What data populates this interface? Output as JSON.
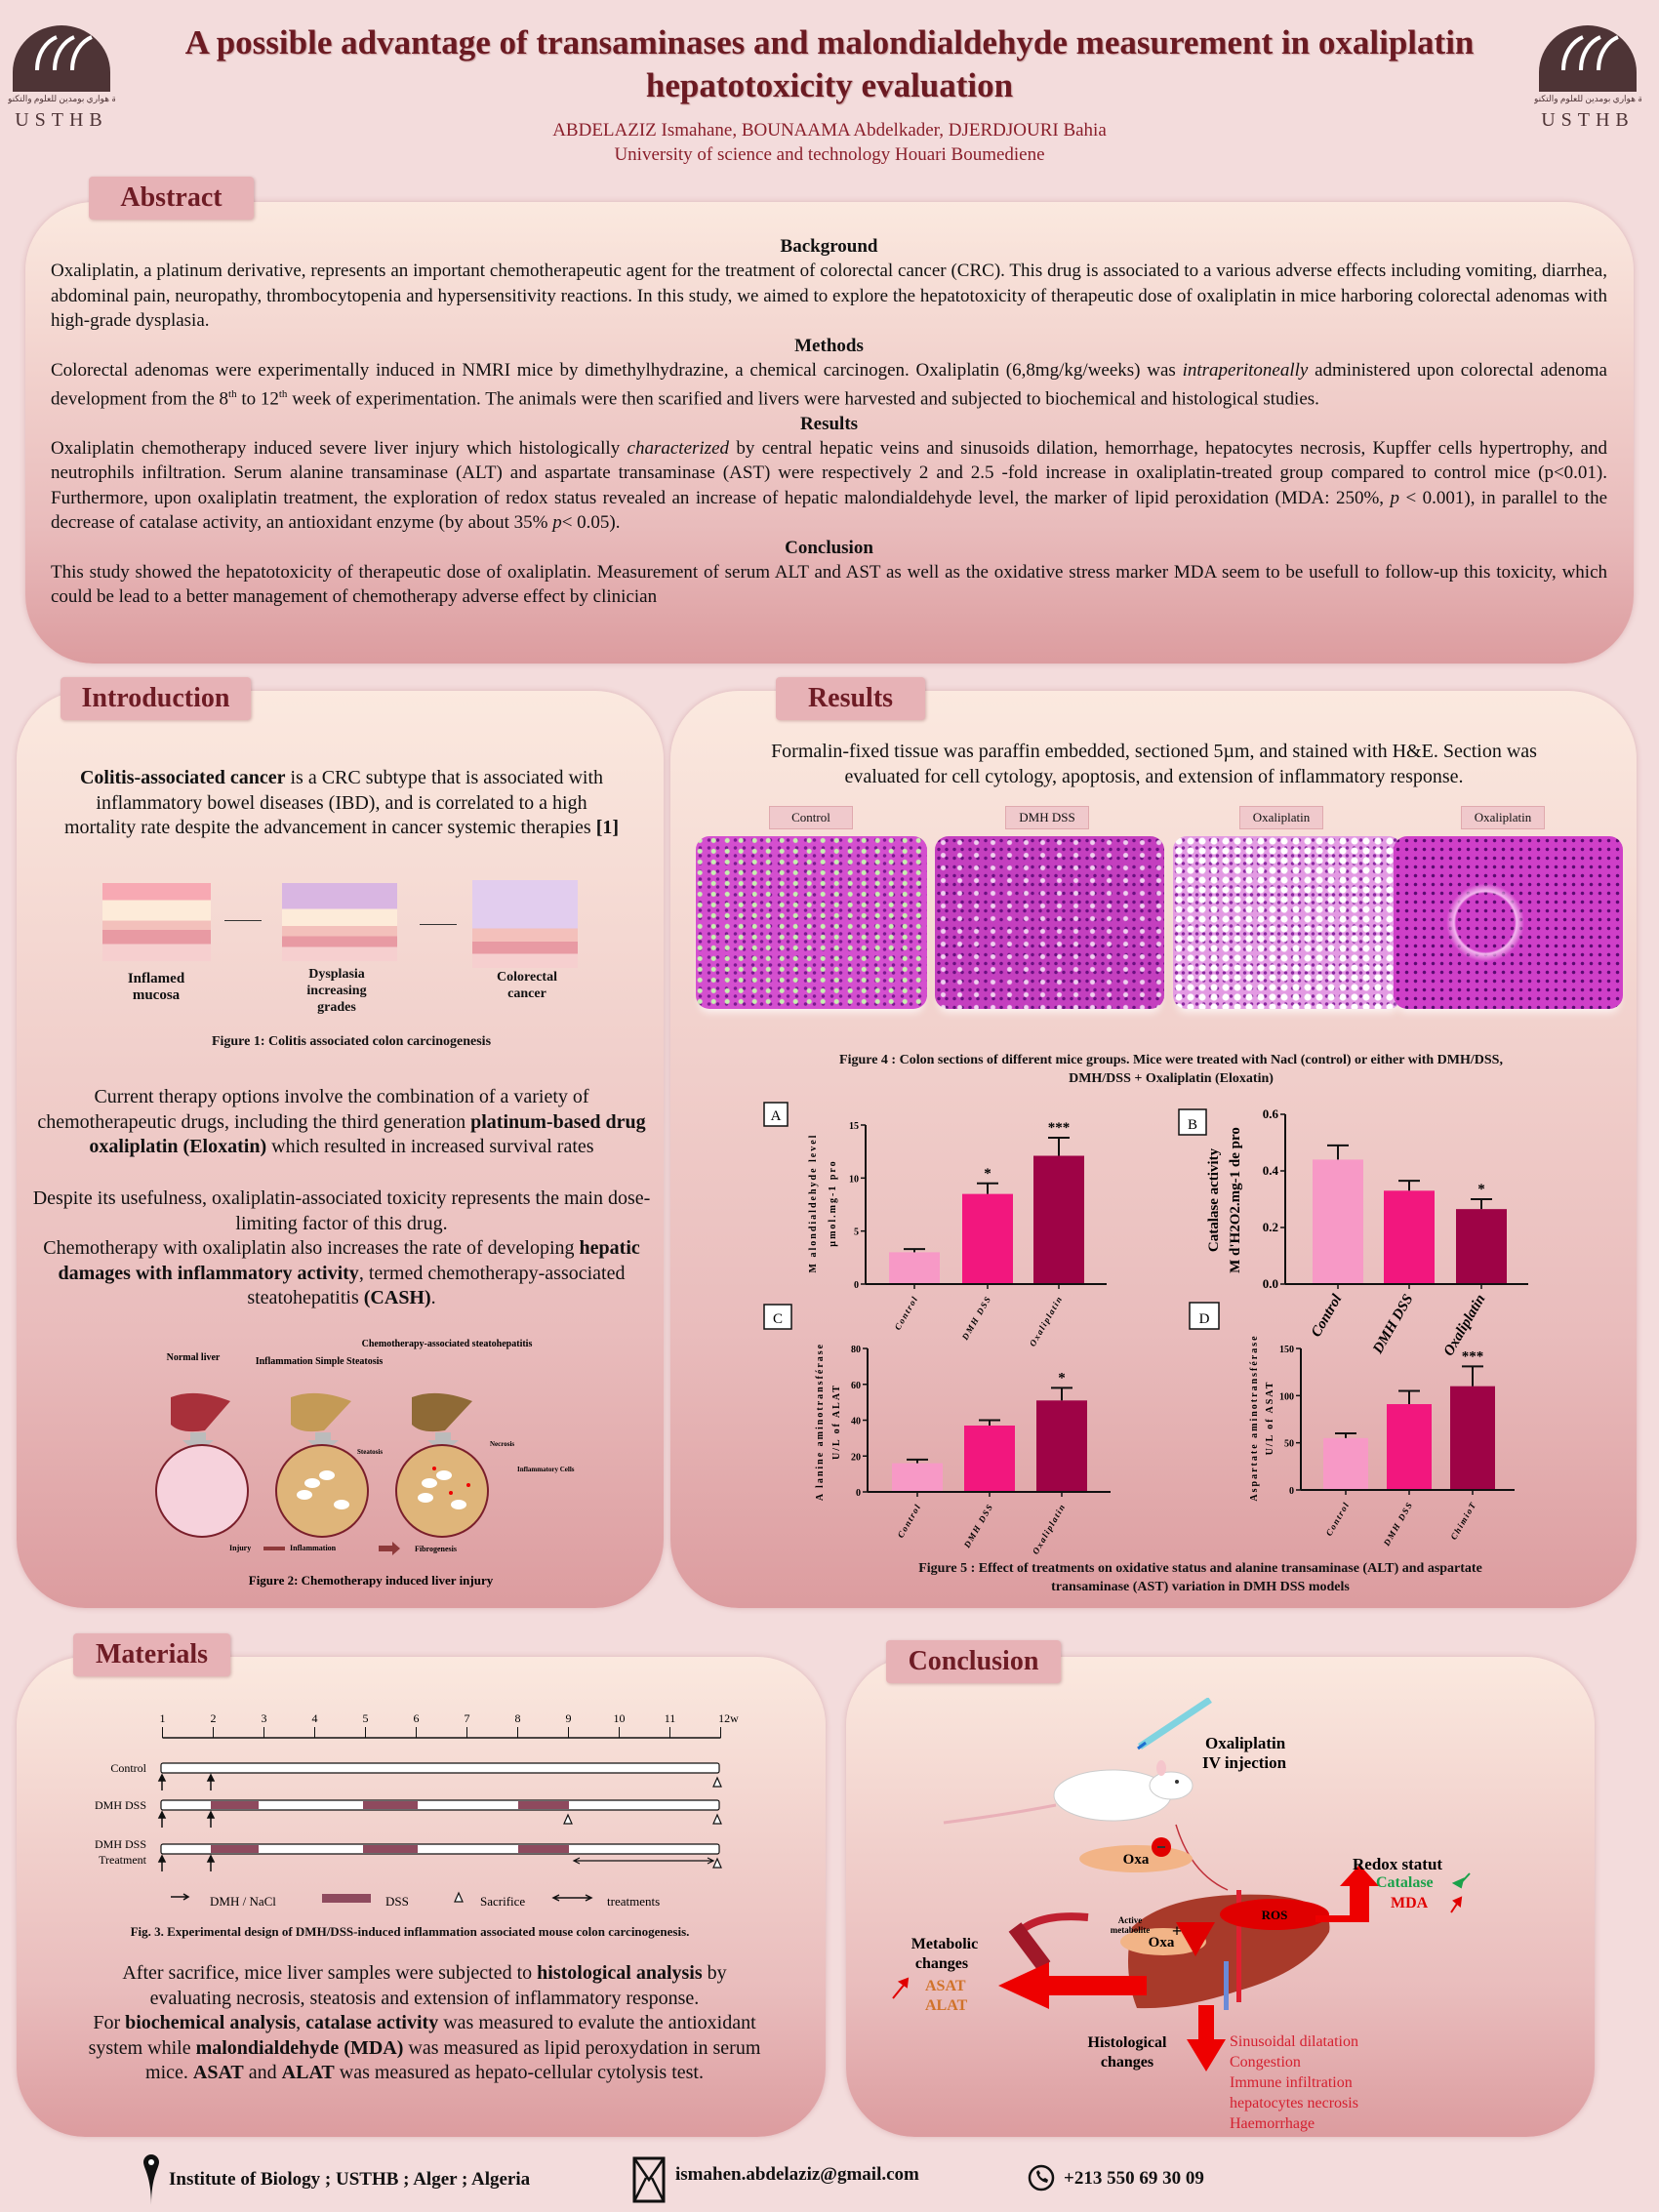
{
  "header": {
    "title_line1": "A possible advantage of transaminases and malondialdehyde measurement in oxaliplatin",
    "title_line2": "hepatotoxicity evaluation",
    "authors": "ABDELAZIZ Ismahane, BOUNAAMA Abdelkader, DJERDJOURI Bahia",
    "affiliation": "University of science and technology Houari Boumediene",
    "logo_text": "USTHB",
    "logo_arabic": "جامعة هواري بومدين للعلوم والتكنولوجيا"
  },
  "abstract": {
    "label": "Abstract",
    "background_h": "Background",
    "background": [
      {
        "t": "Oxaliplatin, a platinum derivative, represents an important chemotherapeutic agent for the treatment of colorectal cancer (CRC). This drug is associated to a various adverse effects including vomiting, diarrhea, abdominal pain, neuropathy, thrombocytopenia and hypersensitivity reactions. In this study, we aimed to explore the hepatotoxicity of therapeutic dose of oxaliplatin in mice harboring colorectal adenomas with high-grade dysplasia."
      }
    ],
    "methods_h": "Methods",
    "methods": [
      {
        "t": "Colorectal adenomas were experimentally induced in NMRI mice by dimethylhydrazine, a chemical carcinogen.  Oxaliplatin (6,8mg/kg/weeks) was "
      },
      {
        "t": "intraperitoneally",
        "i": true
      },
      {
        "t": " administered upon colorectal adenoma development from the 8"
      },
      {
        "t": "th",
        "sup": true
      },
      {
        "t": " to 12"
      },
      {
        "t": "th",
        "sup": true
      },
      {
        "t": " week of experimentation. The animals were then scarified and livers were harvested and subjected to biochemical and histological studies."
      }
    ],
    "results_h": "Results",
    "results": [
      {
        "t": " Oxaliplatin chemotherapy induced severe liver injury which histologically "
      },
      {
        "t": "characterized",
        "i": true
      },
      {
        "t": " by central hepatic veins and sinusoids dilation, hemorrhage, hepatocytes necrosis, Kupffer cells hypertrophy, and neutrophils infiltration. Serum alanine transaminase (ALT) and aspartate transaminase (AST) were respectively 2 and 2.5 -fold increase in oxaliplatin-treated group compared to control mice (p<0.01). Furthermore, upon oxaliplatin treatment, the exploration of redox status revealed an increase of hepatic malondialdehyde level, the marker of lipid peroxidation (MDA: 250%, "
      },
      {
        "t": "p",
        "i": true
      },
      {
        "t": " < 0.001), in parallel to the decrease of catalase activity, an antioxidant enzyme (by about 35% "
      },
      {
        "t": "p",
        "i": true
      },
      {
        "t": "< 0.05)."
      }
    ],
    "conclusion_h": "Conclusion",
    "conclusion": [
      {
        "t": "  This study showed the hepatotoxicity of therapeutic dose of oxaliplatin.  Measurement of serum ALT and AST as well as the oxidative stress marker MDA seem to be usefull to follow-up this toxicity, which could be lead to a better management of chemotherapy adverse effect by clinician"
      }
    ]
  },
  "introduction": {
    "label": "Introduction",
    "p1": [
      {
        "t": "Colitis-associated cancer",
        "b": true
      },
      {
        "t": " is a CRC subtype that is associated with inflammatory bowel diseases (IBD), and is correlated to a high mortality  rate despite the advancement in cancer  systemic therapies "
      },
      {
        "t": "[1]",
        "b": true
      }
    ],
    "fig1": {
      "stages": [
        "Inflamed mucosa",
        "Dysplasia increasing grades",
        "Colorectal cancer"
      ],
      "caption": "Figure 1: Colitis associated colon carcinogenesis"
    },
    "p2": [
      {
        "t": "Current therapy options involve the combination of a variety of chemotherapeutic drugs, including the third generation "
      },
      {
        "t": "platinum-based drug oxaliplatin (Eloxatin)",
        "b": true
      },
      {
        "t": " which resulted in increased survival rates"
      }
    ],
    "p3": [
      {
        "t": "Despite its usefulness, oxaliplatin-associated toxicity represents the main dose-limiting factor of this drug."
      },
      {
        "br": true
      },
      {
        "t": "Chemotherapy with oxaliplatin also increases the rate of developing "
      },
      {
        "t": "hepatic damages with inflammatory activity",
        "b": true
      },
      {
        "t": ", termed chemotherapy-associated steatohepatitis "
      },
      {
        "t": "(CASH)",
        "b": true
      },
      {
        "t": "."
      }
    ],
    "fig2": {
      "stages": [
        "Normal liver",
        "Inflammation Simple Steatosis",
        "Chemotherapy-associated steatohepatitis"
      ],
      "annotations": {
        "steatosis": "Steatosis",
        "necrosis": "Necrosis",
        "inflammatory": "Inflammatory Cells"
      },
      "flow": [
        "Injury",
        "Inflammation",
        "Fibrogenesis"
      ],
      "caption": "Figure 2: Chemotherapy induced liver injury"
    }
  },
  "results": {
    "label": "Results",
    "intro": "Formalin-fixed tissue was paraffin embedded, sectioned 5µm, and stained with H&E. Section was evaluated for cell cytology, apoptosis, and extension of inflammatory response.",
    "histology_labels": [
      "Control",
      "DMH DSS",
      "Oxaliplatin",
      "Oxaliplatin"
    ],
    "fig4_caption": "Figure 4 : Colon sections of different  mice groups. Mice were treated with Nacl (control) or either with  DMH/DSS, DMH/DSS + Oxaliplatin (Eloxatin)",
    "fig5_caption_1": "Figure 5 : Effect of treatments on oxidative status and alanine transaminase (ALT) and aspartate",
    "fig5_caption_2": "transaminase (AST) variation in DMH DSS models"
  },
  "chart_data": [
    {
      "type": "bar",
      "panel": "A",
      "categories": [
        "Control",
        "DMH DSS",
        "Oxaliplatin"
      ],
      "values": [
        3.0,
        8.5,
        12.1
      ],
      "errors": [
        0.3,
        1.0,
        1.7
      ],
      "significance": [
        "",
        "*",
        "***"
      ],
      "ylabel": [
        "M alondialdehyde level",
        "µmol.mg-1 pro"
      ],
      "ylim": [
        0,
        15
      ],
      "yticks": [
        0,
        5,
        10,
        15
      ],
      "colors": [
        "#f799c6",
        "#f2177e",
        "#9e0346"
      ]
    },
    {
      "type": "bar",
      "panel": "B",
      "categories": [
        "Control",
        "DMH DSS",
        "Oxaliplatin"
      ],
      "values": [
        0.44,
        0.33,
        0.265
      ],
      "errors": [
        0.05,
        0.035,
        0.035
      ],
      "significance": [
        "",
        "",
        "*"
      ],
      "ylabel": [
        "Catalase activity",
        "M d'H2O2.mg-1 de pro"
      ],
      "ylim": [
        0,
        0.6
      ],
      "yticks": [
        "0.0",
        "0.2",
        "0.4",
        "0.6"
      ],
      "colors": [
        "#f799c6",
        "#f2177e",
        "#9e0346"
      ]
    },
    {
      "type": "bar",
      "panel": "C",
      "categories": [
        "Control",
        "DMH DSS",
        "Oxaliplatin"
      ],
      "values": [
        16,
        37,
        51
      ],
      "errors": [
        2,
        3,
        7
      ],
      "significance": [
        "",
        "",
        "*"
      ],
      "ylabel": [
        "A lanine aminotransférase",
        "U/L of ALAT"
      ],
      "ylim": [
        0,
        80
      ],
      "yticks": [
        0,
        20,
        40,
        60,
        80
      ],
      "colors": [
        "#f799c6",
        "#f2177e",
        "#9e0346"
      ]
    },
    {
      "type": "bar",
      "panel": "D",
      "categories": [
        "Control",
        "DMH DSS",
        "ChimioT"
      ],
      "values": [
        55,
        91,
        110
      ],
      "errors": [
        5,
        14,
        21
      ],
      "significance": [
        "",
        "",
        "***"
      ],
      "ylabel": [
        "Aspartate aminotransférase",
        "U/L of ASAT"
      ],
      "ylim": [
        0,
        150
      ],
      "yticks": [
        0,
        50,
        100,
        150
      ],
      "colors": [
        "#f799c6",
        "#f2177e",
        "#9e0346"
      ]
    }
  ],
  "materials": {
    "label": "Materials",
    "weeks": [
      "1",
      "2",
      "3",
      "4",
      "5",
      "6",
      "7",
      "8",
      "9",
      "10",
      "11",
      "12w"
    ],
    "rows": [
      "Control",
      "DMH DSS",
      "DMH DSS Treatment"
    ],
    "legend": {
      "dmh": "DMH / NaCl",
      "dss": "DSS",
      "sacrifice": "Sacrifice",
      "treatments": "treatments"
    },
    "fig3_caption": "Fig. 3. Experimental design of DMH/DSS-induced inflammation associated mouse colon carcinogenesis.",
    "text": [
      {
        "t": "After sacrifice, mice liver samples were subjected to "
      },
      {
        "t": "histological analysis",
        "b": true
      },
      {
        "t": " by evaluating necrosis, steatosis and extension of inflammatory response."
      },
      {
        "br": true
      },
      {
        "t": "For "
      },
      {
        "t": "biochemical analysis",
        "b": true
      },
      {
        "t": ",  "
      },
      {
        "t": "catalase activity",
        "b": true
      },
      {
        "t": " was measured to evalute the antioxidant system while "
      },
      {
        "t": "malondialdehyde (MDA)",
        "b": true
      },
      {
        "t": " was measured as lipid peroxydation in serum mice. "
      },
      {
        "t": "ASAT",
        "b": true
      },
      {
        "t": " and "
      },
      {
        "t": "ALAT",
        "b": true
      },
      {
        "t": " was measured as hepato-cellular cytolysis test."
      }
    ]
  },
  "conclusion": {
    "label": "Conclusion",
    "injection": [
      "Oxaliplatin",
      "IV injection"
    ],
    "oxa": "Oxa",
    "active": [
      "Active",
      "metabolite"
    ],
    "ros": "ROS",
    "redox": "Redox statut",
    "catalase": "Catalase",
    "mda": "MDA",
    "metabolic": [
      "Metabolic",
      "changes"
    ],
    "asat": "ASAT",
    "alat": "ALAT",
    "histological": [
      "Histological",
      "changes"
    ],
    "histo_list": [
      "Sinusoidal  dilatation",
      "Congestion",
      "Immune infiltration",
      "hepatocytes necrosis",
      "Haemorrhage"
    ]
  },
  "footer": {
    "address": "Institute of Biology ; USTHB ; Alger ; Algeria",
    "email": "ismahen.abdelaziz@gmail.com",
    "phone": "+213 550 69 30 09"
  },
  "colors": {
    "accent": "#6b1a22",
    "label_bg": "#e7b2b6",
    "control": "#f799c6",
    "dmh": "#f2177e",
    "oxa": "#9e0346",
    "dss": "#8e4a5e",
    "arrow_red": "#ee0000",
    "green": "#1aa14a"
  }
}
